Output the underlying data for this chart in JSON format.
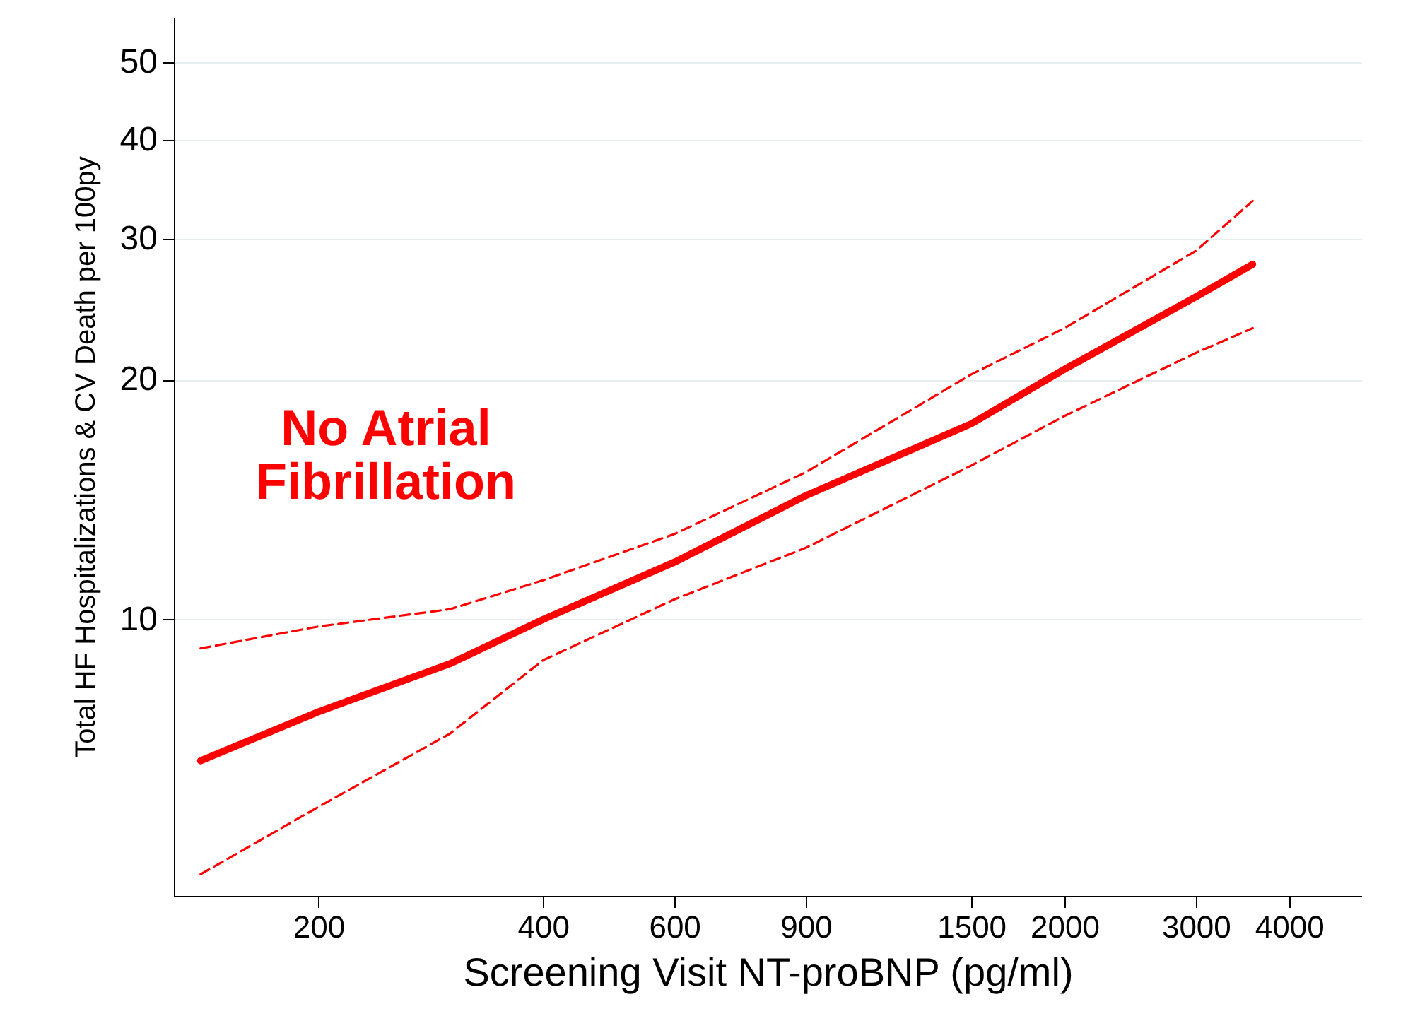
{
  "chart_data": {
    "type": "line",
    "xlabel": "Screening Visit NT-proBNP (pg/ml)",
    "ylabel": "Total HF Hospitalizations & CV Death per 100py",
    "log": "xy",
    "grid": "y",
    "xlim": [
      128,
      5000
    ],
    "ylim": [
      4.5,
      57
    ],
    "xticks": [
      200,
      400,
      600,
      900,
      1500,
      2000,
      3000,
      4000
    ],
    "yticks": [
      10,
      20,
      30,
      40,
      50
    ],
    "annotations": [
      "No Atrial\nFibrillation"
    ],
    "series": [
      {
        "color": "#ff0000",
        "line_style": "dashed",
        "x": [
          139,
          200,
          300,
          400,
          600,
          900,
          1500,
          2000,
          3000,
          3575
        ],
        "values": [
          9.2,
          9.8,
          10.3,
          11.2,
          12.8,
          15.3,
          20.3,
          23.2,
          29.0,
          33.5
        ]
      },
      {
        "color": "#ff0000",
        "line_style": "solid",
        "x": [
          139,
          200,
          300,
          400,
          600,
          900,
          1500,
          2000,
          3000,
          3575
        ],
        "values": [
          6.65,
          7.66,
          8.8,
          10,
          11.8,
          14.3,
          17.6,
          20.6,
          25.4,
          27.9
        ]
      },
      {
        "color": "#ff0000",
        "line_style": "dashed",
        "x": [
          139,
          200,
          300,
          400,
          600,
          900,
          1500,
          2000,
          3000,
          3575
        ],
        "values": [
          4.79,
          5.82,
          7.19,
          8.89,
          10.6,
          12.3,
          15.6,
          18.0,
          21.6,
          23.2
        ]
      }
    ]
  }
}
